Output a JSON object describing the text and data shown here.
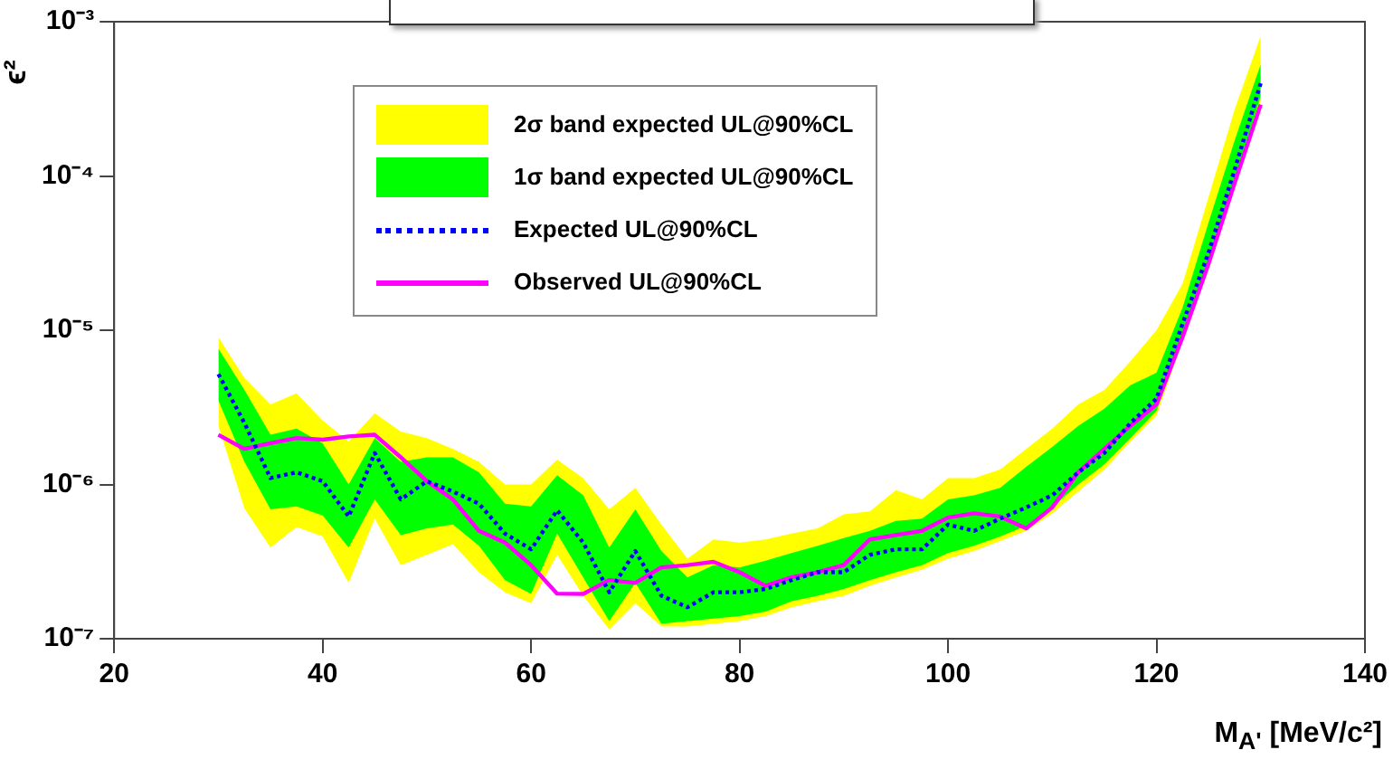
{
  "chart_data": {
    "type": "line",
    "xlabel": "M$_{A'}$ [MeV/c²]",
    "ylabel": "ϵ²",
    "log": "y",
    "legend": "top",
    "grid": false,
    "x": [
      30,
      32.5,
      35,
      37.5,
      40,
      42.5,
      45,
      47.5,
      50,
      52.5,
      55,
      57.5,
      60,
      62.5,
      65,
      67.5,
      70,
      72.5,
      75,
      77.5,
      80,
      82.5,
      85,
      87.5,
      90,
      92.5,
      95,
      97.5,
      100,
      102.5,
      105,
      107.5,
      110,
      112.5,
      115,
      117.5,
      120,
      122.5,
      125,
      127.5,
      130
    ],
    "xlim": [
      20,
      140
    ],
    "xticks": [
      20,
      40,
      60,
      80,
      100,
      120,
      140
    ],
    "ylim": [
      1e-07,
      0.001
    ],
    "yticks": [
      {
        "value": 1e-07,
        "label": "10⁻⁷"
      },
      {
        "value": 1e-06,
        "label": "10⁻⁶"
      },
      {
        "value": 1e-05,
        "label": "10⁻⁵"
      },
      {
        "value": 0.0001,
        "label": "10⁻⁴"
      },
      {
        "value": 0.001,
        "label": "10⁻³"
      }
    ],
    "series": [
      {
        "name": "2σ band expected UL@90%CL",
        "type": "area",
        "color": "#ffff00",
        "values": [
          null,
          null,
          null,
          null,
          null,
          null,
          null,
          null,
          null,
          null,
          null,
          null,
          null,
          null,
          null,
          null,
          null,
          null,
          null,
          null,
          null,
          null,
          null,
          null,
          null,
          null,
          null,
          null,
          null,
          null,
          null,
          null,
          null,
          null,
          null,
          null,
          null,
          null,
          null,
          null,
          null
        ],
        "upper": [
          9e-06,
          4.9e-06,
          3.3e-06,
          3.9e-06,
          2.6e-06,
          1.9e-06,
          2.9e-06,
          2.2e-06,
          2e-06,
          1.7e-06,
          1.4e-06,
          1e-06,
          1e-06,
          1.45e-06,
          1.1e-06,
          6.9e-07,
          9.5e-07,
          5.5e-07,
          3.3e-07,
          4.4e-07,
          4.2e-07,
          4.4e-07,
          4.8e-07,
          5.2e-07,
          6.4e-07,
          6.7e-07,
          9.2e-07,
          8e-07,
          1.1e-06,
          1.1e-06,
          1.25e-06,
          1.7e-06,
          2.3e-06,
          3.3e-06,
          4.1e-06,
          6.3e-06,
          1e-05,
          2e-05,
          7.3e-05,
          0.00027,
          0.00081
        ],
        "lower": [
          2.4e-06,
          7e-07,
          3.9e-07,
          5.3e-07,
          4.6e-07,
          2.3e-07,
          6e-07,
          3e-07,
          3.5e-07,
          4.1e-07,
          2.7e-07,
          2e-07,
          1.7e-07,
          3.5e-07,
          1.9e-07,
          1.15e-07,
          1.7e-07,
          1.2e-07,
          1.2e-07,
          1.25e-07,
          1.3e-07,
          1.4e-07,
          1.6e-07,
          1.75e-07,
          1.9e-07,
          2.2e-07,
          2.5e-07,
          2.8e-07,
          3.3e-07,
          3.7e-07,
          4.3e-07,
          5e-07,
          6.5e-07,
          9e-07,
          1.25e-06,
          1.9e-06,
          2.8e-06,
          8.5e-06,
          2.5e-05,
          8.5e-05,
          0.00031
        ]
      },
      {
        "name": "1σ band expected UL@90%CL",
        "type": "area",
        "color": "#00ff00",
        "values": [
          null,
          null,
          null,
          null,
          null,
          null,
          null,
          null,
          null,
          null,
          null,
          null,
          null,
          null,
          null,
          null,
          null,
          null,
          null,
          null,
          null,
          null,
          null,
          null,
          null,
          null,
          null,
          null,
          null,
          null,
          null,
          null,
          null,
          null,
          null,
          null,
          null,
          null,
          null,
          null,
          null
        ],
        "upper": [
          7.6e-06,
          4.1e-06,
          2.1e-06,
          2.3e-06,
          1.85e-06,
          1e-06,
          2e-06,
          1.4e-06,
          1.5e-06,
          1.5e-06,
          1.2e-06,
          7.5e-07,
          7.2e-07,
          1.15e-06,
          8.5e-07,
          3.9e-07,
          6.9e-07,
          3.7e-07,
          2.5e-07,
          3e-07,
          2.9e-07,
          3.2e-07,
          3.6e-07,
          4e-07,
          4.5e-07,
          5e-07,
          5.8e-07,
          6e-07,
          8e-07,
          8.5e-07,
          9.5e-07,
          1.3e-06,
          1.75e-06,
          2.4e-06,
          3.1e-06,
          4.4e-06,
          5.3e-06,
          1.4e-05,
          5e-05,
          0.00017,
          0.00053
        ],
        "lower": [
          3.5e-06,
          1.4e-06,
          6.9e-07,
          7.2e-07,
          6.3e-07,
          3.9e-07,
          8e-07,
          4.7e-07,
          5.2e-07,
          5.5e-07,
          4e-07,
          2.4e-07,
          1.95e-07,
          4.8e-07,
          2.5e-07,
          1.3e-07,
          2.3e-07,
          1.25e-07,
          1.3e-07,
          1.35e-07,
          1.4e-07,
          1.5e-07,
          1.75e-07,
          1.9e-07,
          2.1e-07,
          2.4e-07,
          2.7e-07,
          3e-07,
          3.6e-07,
          4e-07,
          4.6e-07,
          5.4e-07,
          7.1e-07,
          1e-06,
          1.35e-06,
          2e-06,
          3e-06,
          9e-06,
          2.7e-05,
          9e-05,
          0.00033
        ]
      },
      {
        "name": "Expected UL@90%CL",
        "type": "line",
        "color": "#0000ff",
        "line_style": "dotted",
        "values": [
          5.2e-06,
          2.5e-06,
          1.1e-06,
          1.2e-06,
          1.05e-06,
          6.2e-07,
          1.6e-06,
          8e-07,
          1.05e-06,
          9e-07,
          7.5e-07,
          4.8e-07,
          3.8e-07,
          6.8e-07,
          4.2e-07,
          2e-07,
          3.7e-07,
          1.9e-07,
          1.6e-07,
          2e-07,
          2e-07,
          2.1e-07,
          2.4e-07,
          2.7e-07,
          2.7e-07,
          3.5e-07,
          3.8e-07,
          3.8e-07,
          5.5e-07,
          5e-07,
          6e-07,
          7.1e-07,
          8.5e-07,
          1.2e-06,
          1.6e-06,
          2.5e-06,
          3.6e-06,
          1.1e-05,
          3.2e-05,
          0.00011,
          0.0004
        ]
      },
      {
        "name": "Observed UL@90%CL",
        "type": "line",
        "color": "#ff00ff",
        "line_style": "solid",
        "values": [
          2.1e-06,
          1.7e-06,
          1.85e-06,
          2e-06,
          1.95e-06,
          2.05e-06,
          2.1e-06,
          1.5e-06,
          1.05e-06,
          8e-07,
          5e-07,
          4.2e-07,
          3e-07,
          1.96e-07,
          1.95e-07,
          2.4e-07,
          2.3e-07,
          2.9e-07,
          3e-07,
          3.15e-07,
          2.7e-07,
          2.2e-07,
          2.5e-07,
          2.7e-07,
          3e-07,
          4.4e-07,
          4.7e-07,
          5e-07,
          6.1e-07,
          6.5e-07,
          6.2e-07,
          5.2e-07,
          7.1e-07,
          1.2e-06,
          1.7e-06,
          2.4e-06,
          3.3e-06,
          9e-06,
          2.7e-05,
          9e-05,
          0.00029
        ]
      }
    ]
  }
}
